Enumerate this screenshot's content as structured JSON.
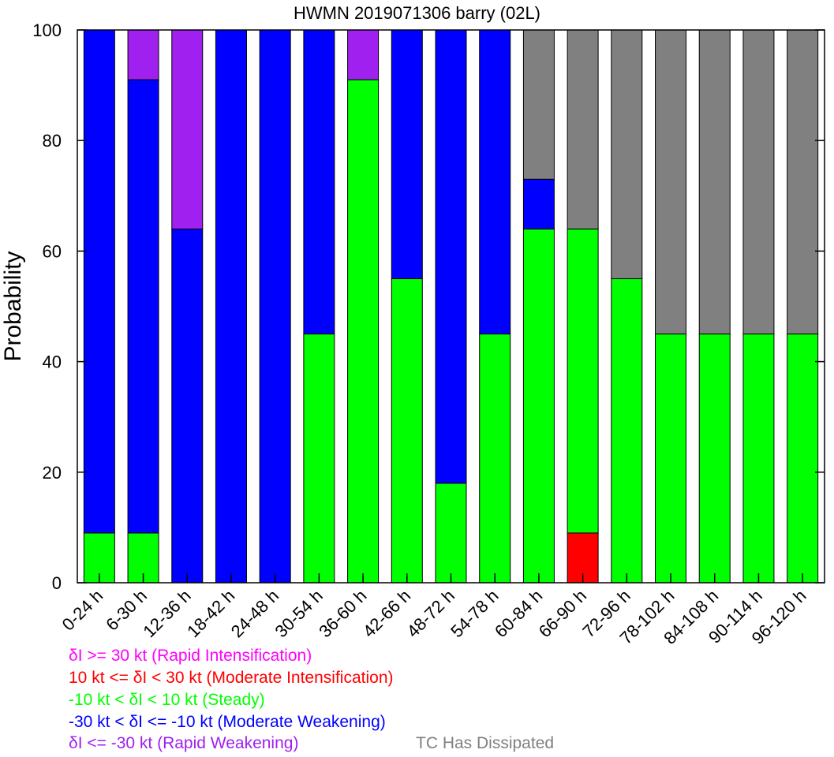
{
  "chart_data": {
    "type": "bar",
    "stacked": true,
    "title": "HWMN 2019071306 barry (02L)",
    "xlabel": "",
    "ylabel": "Probability",
    "ylim": [
      0,
      100
    ],
    "yticks": [
      "0",
      "20",
      "40",
      "60",
      "80",
      "100"
    ],
    "categories": [
      "0-24 h",
      "6-30 h",
      "12-36 h",
      "18-42 h",
      "24-48 h",
      "30-54 h",
      "36-60 h",
      "42-66 h",
      "48-72 h",
      "54-78 h",
      "60-84 h",
      "66-90 h",
      "72-96 h",
      "78-102 h",
      "84-108 h",
      "90-114 h",
      "96-120 h"
    ],
    "series": [
      {
        "name": "δI >= 30 kt (Rapid Intensification)",
        "color": "#ff00ff",
        "values": [
          0,
          0,
          0,
          0,
          0,
          0,
          0,
          0,
          0,
          0,
          0,
          0,
          0,
          0,
          0,
          0,
          0
        ]
      },
      {
        "name": "10 kt <= δI < 30 kt (Moderate Intensification)",
        "color": "#ff0000",
        "values": [
          0,
          0,
          0,
          0,
          0,
          0,
          0,
          0,
          0,
          0,
          0,
          9,
          0,
          0,
          0,
          0,
          0
        ]
      },
      {
        "name": "-10 kt < δI < 10 kt (Steady)",
        "color": "#00ff00",
        "values": [
          9,
          9,
          0,
          0,
          0,
          45,
          91,
          55,
          18,
          45,
          64,
          55,
          55,
          45,
          45,
          45,
          45
        ]
      },
      {
        "name": "-30 kt < δI <= -10 kt (Moderate Weakening)",
        "color": "#0000ff",
        "values": [
          91,
          82,
          64,
          100,
          100,
          55,
          0,
          45,
          82,
          55,
          9,
          0,
          0,
          0,
          0,
          0,
          0
        ]
      },
      {
        "name": "δI <= -30 kt (Rapid Weakening)",
        "color": "#a020f0",
        "values": [
          0,
          9,
          36,
          0,
          0,
          0,
          9,
          0,
          0,
          0,
          0,
          0,
          0,
          0,
          0,
          0,
          0
        ]
      },
      {
        "name": "TC Has Dissipated",
        "color": "#808080",
        "values": [
          0,
          0,
          0,
          0,
          0,
          0,
          0,
          0,
          0,
          0,
          27,
          36,
          45,
          55,
          55,
          55,
          55
        ]
      }
    ],
    "grid": false
  }
}
